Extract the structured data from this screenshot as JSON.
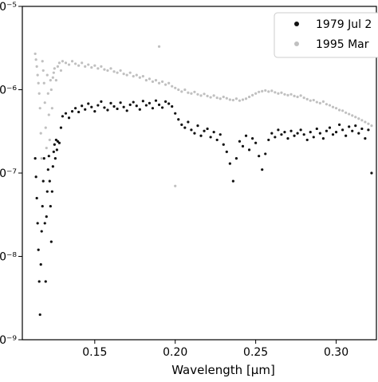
{
  "chart_data": {
    "type": "scatter",
    "title": "",
    "xlabel": "Wavelength [μm]",
    "ylabel": "",
    "x_scale": "linear",
    "y_scale": "log",
    "xlim": [
      0.105,
      0.325
    ],
    "ylim": [
      1e-09,
      1e-05
    ],
    "x_ticks": [
      0.15,
      0.2,
      0.25,
      0.3
    ],
    "x_tick_labels": [
      "0.15",
      "0.20",
      "0.25",
      "0.30"
    ],
    "y_ticks": [
      1e-09,
      1e-08,
      1e-07,
      1e-06,
      1e-05
    ],
    "y_tick_labels": [
      "10⁻⁹",
      "10⁻⁸",
      "10⁻⁷",
      "10⁻⁶",
      "10⁻⁵"
    ],
    "grid": false,
    "legend_position": "top-right",
    "series": [
      {
        "name": "1979 Jul 2",
        "color": "#111111",
        "points": [
          [
            0.113,
            1.5e-07
          ],
          [
            0.1135,
            9e-08
          ],
          [
            0.114,
            5e-08
          ],
          [
            0.1145,
            2.5e-08
          ],
          [
            0.115,
            1.2e-08
          ],
          [
            0.1155,
            5e-09
          ],
          [
            0.116,
            2e-09
          ],
          [
            0.1165,
            8e-09
          ],
          [
            0.117,
            2e-08
          ],
          [
            0.1175,
            4e-08
          ],
          [
            0.118,
            8e-08
          ],
          [
            0.1185,
            1.5e-07
          ],
          [
            0.119,
            2.5e-08
          ],
          [
            0.1195,
            5e-09
          ],
          [
            0.12,
            3e-08
          ],
          [
            0.1205,
            6e-08
          ],
          [
            0.121,
            1.1e-07
          ],
          [
            0.1215,
            1.6e-07
          ],
          [
            0.122,
            8e-08
          ],
          [
            0.1225,
            4e-08
          ],
          [
            0.123,
            1.5e-08
          ],
          [
            0.1235,
            6e-08
          ],
          [
            0.124,
            1.2e-07
          ],
          [
            0.1245,
            1.8e-07
          ],
          [
            0.125,
            2.2e-07
          ],
          [
            0.1255,
            1.5e-07
          ],
          [
            0.126,
            2.5e-07
          ],
          [
            0.1265,
            1.9e-07
          ],
          [
            0.127,
            2.4e-07
          ],
          [
            0.128,
            2.3e-07
          ],
          [
            0.129,
            3.5e-07
          ],
          [
            0.13,
            4.8e-07
          ],
          [
            0.132,
            5.2e-07
          ],
          [
            0.134,
            4.6e-07
          ],
          [
            0.136,
            5.5e-07
          ],
          [
            0.138,
            6e-07
          ],
          [
            0.14,
            5.4e-07
          ],
          [
            0.142,
            6.4e-07
          ],
          [
            0.144,
            5.8e-07
          ],
          [
            0.146,
            6.8e-07
          ],
          [
            0.148,
            6.2e-07
          ],
          [
            0.15,
            5.5e-07
          ],
          [
            0.152,
            6.5e-07
          ],
          [
            0.154,
            7.2e-07
          ],
          [
            0.156,
            6.1e-07
          ],
          [
            0.158,
            5.7e-07
          ],
          [
            0.16,
            6.9e-07
          ],
          [
            0.162,
            6.3e-07
          ],
          [
            0.164,
            5.9e-07
          ],
          [
            0.166,
            7e-07
          ],
          [
            0.168,
            6.2e-07
          ],
          [
            0.17,
            5.6e-07
          ],
          [
            0.172,
            6.6e-07
          ],
          [
            0.174,
            7.1e-07
          ],
          [
            0.176,
            6.4e-07
          ],
          [
            0.178,
            5.8e-07
          ],
          [
            0.18,
            7.3e-07
          ],
          [
            0.182,
            6.5e-07
          ],
          [
            0.184,
            6.9e-07
          ],
          [
            0.186,
            6e-07
          ],
          [
            0.188,
            7.4e-07
          ],
          [
            0.19,
            6.6e-07
          ],
          [
            0.192,
            6.1e-07
          ],
          [
            0.194,
            7.2e-07
          ],
          [
            0.196,
            6.8e-07
          ],
          [
            0.198,
            6.3e-07
          ],
          [
            0.2,
            5.2e-07
          ],
          [
            0.202,
            4.4e-07
          ],
          [
            0.204,
            3.8e-07
          ],
          [
            0.206,
            3.5e-07
          ],
          [
            0.208,
            4.1e-07
          ],
          [
            0.21,
            3.3e-07
          ],
          [
            0.212,
            3e-07
          ],
          [
            0.214,
            3.7e-07
          ],
          [
            0.216,
            2.8e-07
          ],
          [
            0.218,
            3.2e-07
          ],
          [
            0.22,
            3.4e-07
          ],
          [
            0.222,
            2.7e-07
          ],
          [
            0.224,
            3.1e-07
          ],
          [
            0.226,
            2.5e-07
          ],
          [
            0.228,
            2.9e-07
          ],
          [
            0.23,
            2.2e-07
          ],
          [
            0.232,
            1.8e-07
          ],
          [
            0.234,
            1.3e-07
          ],
          [
            0.236,
            8e-08
          ],
          [
            0.238,
            1.5e-07
          ],
          [
            0.24,
            2.4e-07
          ],
          [
            0.242,
            2.1e-07
          ],
          [
            0.244,
            2.8e-07
          ],
          [
            0.246,
            1.9e-07
          ],
          [
            0.248,
            2.6e-07
          ],
          [
            0.25,
            2.3e-07
          ],
          [
            0.252,
            1.6e-07
          ],
          [
            0.254,
            1.1e-07
          ],
          [
            0.256,
            1.7e-07
          ],
          [
            0.258,
            2.5e-07
          ],
          [
            0.26,
            3e-07
          ],
          [
            0.262,
            2.7e-07
          ],
          [
            0.264,
            3.3e-07
          ],
          [
            0.266,
            2.9e-07
          ],
          [
            0.268,
            3.1e-07
          ],
          [
            0.27,
            2.6e-07
          ],
          [
            0.272,
            3.2e-07
          ],
          [
            0.274,
            2.8e-07
          ],
          [
            0.276,
            3e-07
          ],
          [
            0.278,
            3.3e-07
          ],
          [
            0.28,
            2.9e-07
          ],
          [
            0.282,
            2.5e-07
          ],
          [
            0.284,
            3.1e-07
          ],
          [
            0.286,
            2.7e-07
          ],
          [
            0.288,
            3.4e-07
          ],
          [
            0.29,
            3e-07
          ],
          [
            0.292,
            2.6e-07
          ],
          [
            0.294,
            3.2e-07
          ],
          [
            0.296,
            3.5e-07
          ],
          [
            0.298,
            2.9e-07
          ],
          [
            0.3,
            3.1e-07
          ],
          [
            0.302,
            3.8e-07
          ],
          [
            0.304,
            3.3e-07
          ],
          [
            0.306,
            2.8e-07
          ],
          [
            0.308,
            3.6e-07
          ],
          [
            0.31,
            3.2e-07
          ],
          [
            0.312,
            3.7e-07
          ],
          [
            0.314,
            3e-07
          ],
          [
            0.316,
            3.4e-07
          ],
          [
            0.318,
            2.6e-07
          ],
          [
            0.32,
            3.3e-07
          ],
          [
            0.322,
            1e-07
          ]
        ]
      },
      {
        "name": "1995 Mar",
        "color": "#c0c0c0",
        "points": [
          [
            0.113,
            2.7e-06
          ],
          [
            0.1135,
            2.3e-06
          ],
          [
            0.114,
            1.9e-06
          ],
          [
            0.1145,
            1.5e-06
          ],
          [
            0.115,
            1.2e-06
          ],
          [
            0.1155,
            9e-07
          ],
          [
            0.116,
            6e-07
          ],
          [
            0.1165,
            3e-07
          ],
          [
            0.117,
            1.5e-07
          ],
          [
            0.1175,
            2.2e-06
          ],
          [
            0.118,
            1.7e-06
          ],
          [
            0.1185,
            1.2e-06
          ],
          [
            0.119,
            7e-07
          ],
          [
            0.1195,
            3.5e-07
          ],
          [
            0.12,
            2e-07
          ],
          [
            0.1205,
            1.5e-06
          ],
          [
            0.121,
            9e-07
          ],
          [
            0.1215,
            5e-07
          ],
          [
            0.122,
            2.5e-07
          ],
          [
            0.1225,
            1.3e-06
          ],
          [
            0.123,
            1e-06
          ],
          [
            0.1235,
            6e-07
          ],
          [
            0.124,
            1.4e-06
          ],
          [
            0.1245,
            1.6e-06
          ],
          [
            0.125,
            1.8e-06
          ],
          [
            0.126,
            1.3e-06
          ],
          [
            0.127,
            1.9e-06
          ],
          [
            0.128,
            2.1e-06
          ],
          [
            0.129,
            1.7e-06
          ],
          [
            0.13,
            2.2e-06
          ],
          [
            0.132,
            2.1e-06
          ],
          [
            0.134,
            2e-06
          ],
          [
            0.136,
            2.2e-06
          ],
          [
            0.138,
            2.05e-06
          ],
          [
            0.14,
            1.95e-06
          ],
          [
            0.142,
            2.1e-06
          ],
          [
            0.144,
            1.9e-06
          ],
          [
            0.146,
            2e-06
          ],
          [
            0.148,
            1.85e-06
          ],
          [
            0.15,
            1.95e-06
          ],
          [
            0.152,
            1.8e-06
          ],
          [
            0.154,
            1.9e-06
          ],
          [
            0.156,
            1.75e-06
          ],
          [
            0.158,
            1.7e-06
          ],
          [
            0.16,
            1.8e-06
          ],
          [
            0.162,
            1.65e-06
          ],
          [
            0.164,
            1.6e-06
          ],
          [
            0.166,
            1.7e-06
          ],
          [
            0.168,
            1.55e-06
          ],
          [
            0.17,
            1.5e-06
          ],
          [
            0.172,
            1.6e-06
          ],
          [
            0.174,
            1.45e-06
          ],
          [
            0.176,
            1.5e-06
          ],
          [
            0.178,
            1.4e-06
          ],
          [
            0.18,
            1.45e-06
          ],
          [
            0.182,
            1.3e-06
          ],
          [
            0.184,
            1.35e-06
          ],
          [
            0.186,
            1.25e-06
          ],
          [
            0.188,
            1.3e-06
          ],
          [
            0.19,
            1.2e-06
          ],
          [
            0.192,
            1.25e-06
          ],
          [
            0.194,
            1.15e-06
          ],
          [
            0.196,
            1.2e-06
          ],
          [
            0.198,
            1.1e-06
          ],
          [
            0.2,
            1.05e-06
          ],
          [
            0.202,
            1e-06
          ],
          [
            0.204,
            9.5e-07
          ],
          [
            0.206,
            1e-06
          ],
          [
            0.208,
            9.2e-07
          ],
          [
            0.21,
            9e-07
          ],
          [
            0.212,
            9.4e-07
          ],
          [
            0.214,
            8.8e-07
          ],
          [
            0.216,
            8.5e-07
          ],
          [
            0.218,
            8.9e-07
          ],
          [
            0.22,
            8.4e-07
          ],
          [
            0.222,
            8.1e-07
          ],
          [
            0.224,
            8.5e-07
          ],
          [
            0.226,
            8e-07
          ],
          [
            0.228,
            7.8e-07
          ],
          [
            0.23,
            8.2e-07
          ],
          [
            0.232,
            7.9e-07
          ],
          [
            0.234,
            7.6e-07
          ],
          [
            0.236,
            7.5e-07
          ],
          [
            0.238,
            7.8e-07
          ],
          [
            0.24,
            7.4e-07
          ],
          [
            0.242,
            7.6e-07
          ],
          [
            0.244,
            7.8e-07
          ],
          [
            0.246,
            8.2e-07
          ],
          [
            0.248,
            8.6e-07
          ],
          [
            0.25,
            9e-07
          ],
          [
            0.252,
            9.4e-07
          ],
          [
            0.254,
            9.6e-07
          ],
          [
            0.256,
            9.8e-07
          ],
          [
            0.258,
            9.5e-07
          ],
          [
            0.26,
            9.7e-07
          ],
          [
            0.262,
            9.3e-07
          ],
          [
            0.264,
            9e-07
          ],
          [
            0.266,
            9.2e-07
          ],
          [
            0.268,
            8.8e-07
          ],
          [
            0.27,
            8.6e-07
          ],
          [
            0.272,
            8.8e-07
          ],
          [
            0.274,
            8.4e-07
          ],
          [
            0.276,
            8.2e-07
          ],
          [
            0.278,
            8.5e-07
          ],
          [
            0.28,
            8e-07
          ],
          [
            0.282,
            7.7e-07
          ],
          [
            0.284,
            7.4e-07
          ],
          [
            0.286,
            7.5e-07
          ],
          [
            0.288,
            7.1e-07
          ],
          [
            0.29,
            6.9e-07
          ],
          [
            0.292,
            7.2e-07
          ],
          [
            0.294,
            6.7e-07
          ],
          [
            0.296,
            6.5e-07
          ],
          [
            0.298,
            6.2e-07
          ],
          [
            0.3,
            6e-07
          ],
          [
            0.302,
            5.7e-07
          ],
          [
            0.304,
            5.6e-07
          ],
          [
            0.306,
            5.3e-07
          ],
          [
            0.308,
            5.1e-07
          ],
          [
            0.31,
            4.9e-07
          ],
          [
            0.312,
            4.7e-07
          ],
          [
            0.314,
            4.5e-07
          ],
          [
            0.316,
            4.3e-07
          ],
          [
            0.318,
            4.1e-07
          ],
          [
            0.32,
            3.9e-07
          ],
          [
            0.322,
            3.7e-07
          ],
          [
            0.19,
            3.3e-06
          ],
          [
            0.2,
            7e-08
          ]
        ]
      }
    ]
  }
}
